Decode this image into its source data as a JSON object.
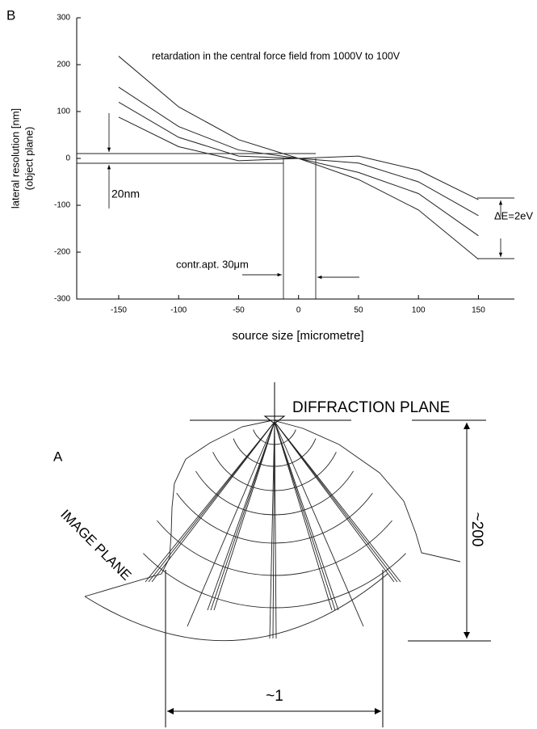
{
  "chart_data": {
    "type": "line",
    "panel": "B",
    "annotations": [
      "retardation in the central force field from 1000V to 100V",
      "20nm",
      "contr.apt. 30μm",
      "ΔE=2eV"
    ],
    "xlabel": "source size [micrometre]",
    "ylabel": [
      "lateral resolution [nm]",
      "(object plane)"
    ],
    "x": [
      -150,
      -100,
      -50,
      0,
      50,
      100,
      150
    ],
    "series": [
      {
        "color": "#222",
        "values": [
          218,
          110,
          40,
          0,
          -45,
          -110,
          -215
        ]
      },
      {
        "color": "#222",
        "values": [
          152,
          68,
          18,
          0,
          -30,
          -75,
          -165
        ]
      },
      {
        "color": "#222",
        "values": [
          120,
          45,
          5,
          0,
          -10,
          -50,
          -122
        ]
      },
      {
        "color": "#222",
        "values": [
          88,
          25,
          -5,
          0,
          5,
          -25,
          -88
        ]
      }
    ],
    "xlim": [
      -185,
      180
    ],
    "ylim": [
      -300,
      300
    ],
    "xticks": [
      -150,
      -100,
      -50,
      0,
      50,
      100,
      150
    ],
    "yticks": [
      -300,
      -200,
      -100,
      0,
      100,
      200,
      300
    ]
  },
  "diagram": {
    "panel": "A",
    "labels": [
      "DIFFRACTION PLANE",
      "~200",
      "IMAGE PLANE",
      "~1"
    ]
  }
}
